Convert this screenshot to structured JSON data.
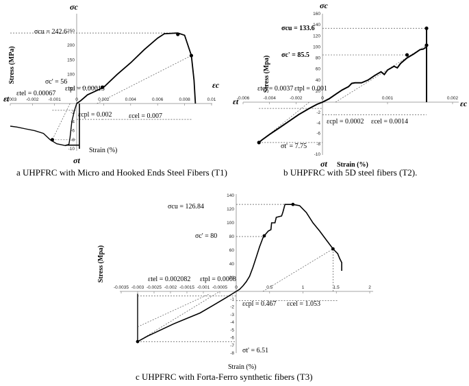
{
  "captions": {
    "a": "a  UHPFRC with Micro and Hooked Ends Steel Fibers (T1)",
    "b": "b  UHPFRC with 5D steel fibers (T2).",
    "c": "c  UHPFRC with Forta-Ferro synthetic fibers (T3)"
  },
  "chart_data": [
    {
      "type": "line",
      "panel": "a",
      "ylabel": "Stress (MPa)",
      "xlabel": "Strain (%)",
      "axis_symbols": {
        "top": "σc",
        "bottom": "σt",
        "right": "εc",
        "left": "εt"
      },
      "xlim": [
        -0.003,
        0.01
      ],
      "ylim": [
        -10,
        250
      ],
      "x_ticks": [
        "-0.003",
        "-0.002",
        "-0.001",
        "0",
        "0.002",
        "0.004",
        "0.006",
        "0.008",
        "0.01"
      ],
      "y_ticks_pos": [
        "50",
        "100",
        "150",
        "200",
        "250"
      ],
      "y_ticks_neg": [
        "-2",
        "-4",
        "-6",
        "-8",
        "-10"
      ],
      "annotations": [
        "σcu = 242.6",
        "σc' = 56",
        "εtel = 0.00067",
        "εtpl = 0.00015",
        "εcpl = 0.002",
        "εcel = 0.007",
        "σt"
      ],
      "series": [
        {
          "values_comp": [
            [
              0,
              0
            ],
            [
              0.0003,
              10
            ],
            [
              0.0008,
              30
            ],
            [
              0.0015,
              45
            ],
            [
              0.002,
              56
            ],
            [
              0.003,
              100
            ],
            [
              0.004,
              140
            ],
            [
              0.005,
              185
            ],
            [
              0.006,
              225
            ],
            [
              0.0065,
              240
            ],
            [
              0.0075,
              242.6
            ],
            [
              0.008,
              235
            ],
            [
              0.0085,
              165
            ],
            [
              0.0087,
              80
            ],
            [
              0.0088,
              0
            ]
          ],
          "values_tens": [
            [
              0,
              0
            ],
            [
              -0.0001,
              -1
            ],
            [
              -0.0002,
              -2
            ],
            [
              -0.00035,
              -3
            ],
            [
              -0.0005,
              -4
            ],
            [
              -0.0008,
              -5.5
            ],
            [
              -0.0012,
              -6
            ],
            [
              -0.0016,
              -6.5
            ],
            [
              -0.002,
              -6.8
            ],
            [
              -0.0023,
              -6.7
            ],
            [
              -0.0026,
              -6.8
            ],
            [
              -0.003,
              -6.5
            ]
          ]
        }
      ]
    },
    {
      "type": "line",
      "panel": "b",
      "ylabel": "Stress (Mpa)",
      "xlabel": "Strain (%)",
      "axis_symbols": {
        "top": "σc",
        "bottom": "σt",
        "right": "εc",
        "left": "εt"
      },
      "xlim": [
        -0.006,
        0.002
      ],
      "ylim": [
        -10,
        160
      ],
      "x_ticks": [
        "-0.006",
        "-0.004",
        "-0.002",
        "0",
        "0.001",
        "0.002"
      ],
      "y_ticks_pos": [
        "20",
        "40",
        "60",
        "80",
        "100",
        "120",
        "140",
        "160"
      ],
      "y_ticks_neg": [
        "-2",
        "-4",
        "-6",
        "-8",
        "-10"
      ],
      "annotations": [
        "σcu = 133.6",
        "σc' = 85.5",
        "εtel = 0.0037",
        "εtpl = 0.001",
        "εcpl = 0.0002",
        "εcel = 0.0014",
        "σt' = 7.75"
      ],
      "series": [
        {
          "values_comp": [
            [
              0,
              0
            ],
            [
              0.0001,
              10
            ],
            [
              0.0002,
              20
            ],
            [
              0.0004,
              35
            ],
            [
              0.0006,
              40
            ],
            [
              0.0008,
              55
            ],
            [
              0.001,
              70
            ],
            [
              0.0012,
              80
            ],
            [
              0.0013,
              85.5
            ],
            [
              0.0014,
              90
            ],
            [
              0.0016,
              100
            ],
            [
              0.0016,
              133.6
            ],
            [
              0.0016,
              0
            ]
          ],
          "values_tens": [
            [
              0,
              0
            ],
            [
              -0.001,
              -1.5
            ],
            [
              -0.002,
              -3
            ],
            [
              -0.003,
              -4.5
            ],
            [
              -0.004,
              -6
            ],
            [
              -0.0047,
              -7.75
            ],
            [
              -0.0049,
              -7.5
            ]
          ]
        }
      ]
    },
    {
      "type": "line",
      "panel": "c",
      "ylabel": "Stress (Mpa)",
      "xlabel": "Strain (%)",
      "xlim": [
        -0.0035,
        2
      ],
      "ylim": [
        -8,
        140
      ],
      "x_ticks": [
        "-0.0035",
        "-0.003",
        "-0.0025",
        "-0.002",
        "-0.0015",
        "-0.001",
        "-0.0005",
        "0",
        "0.5",
        "1",
        "1.5",
        "2"
      ],
      "y_ticks_pos": [
        "20",
        "40",
        "60",
        "80",
        "100",
        "120",
        "140"
      ],
      "y_ticks_neg": [
        "-1",
        "-2",
        "-3",
        "-4",
        "-5",
        "-6",
        "-7",
        "-8"
      ],
      "annotations": [
        "σcu = 126.84",
        "σc' = 80",
        "εtel = 0.002082",
        "εtpl = 0.0008",
        "εcpl = 0.467",
        "εcel = 1.053",
        "σt' = 6.51"
      ],
      "series": [
        {
          "values_comp": [
            [
              0,
              0
            ],
            [
              0.1,
              15
            ],
            [
              0.2,
              35
            ],
            [
              0.3,
              60
            ],
            [
              0.4,
              80
            ],
            [
              0.5,
              90
            ],
            [
              0.55,
              100
            ],
            [
              0.6,
              110
            ],
            [
              0.7,
              115
            ],
            [
              0.8,
              126.84
            ],
            [
              0.9,
              126
            ],
            [
              1.0,
              120
            ],
            [
              1.2,
              95
            ],
            [
              1.4,
              65
            ],
            [
              1.5,
              55
            ],
            [
              1.55,
              45
            ],
            [
              1.58,
              30
            ]
          ],
          "values_tens": [
            [
              0,
              0
            ],
            [
              -0.0005,
              -1
            ],
            [
              -0.001,
              -2
            ],
            [
              -0.0015,
              -3
            ],
            [
              -0.002,
              -4
            ],
            [
              -0.0025,
              -5.5
            ],
            [
              -0.003,
              -6.51
            ],
            [
              -0.003,
              -1
            ]
          ]
        }
      ]
    }
  ]
}
